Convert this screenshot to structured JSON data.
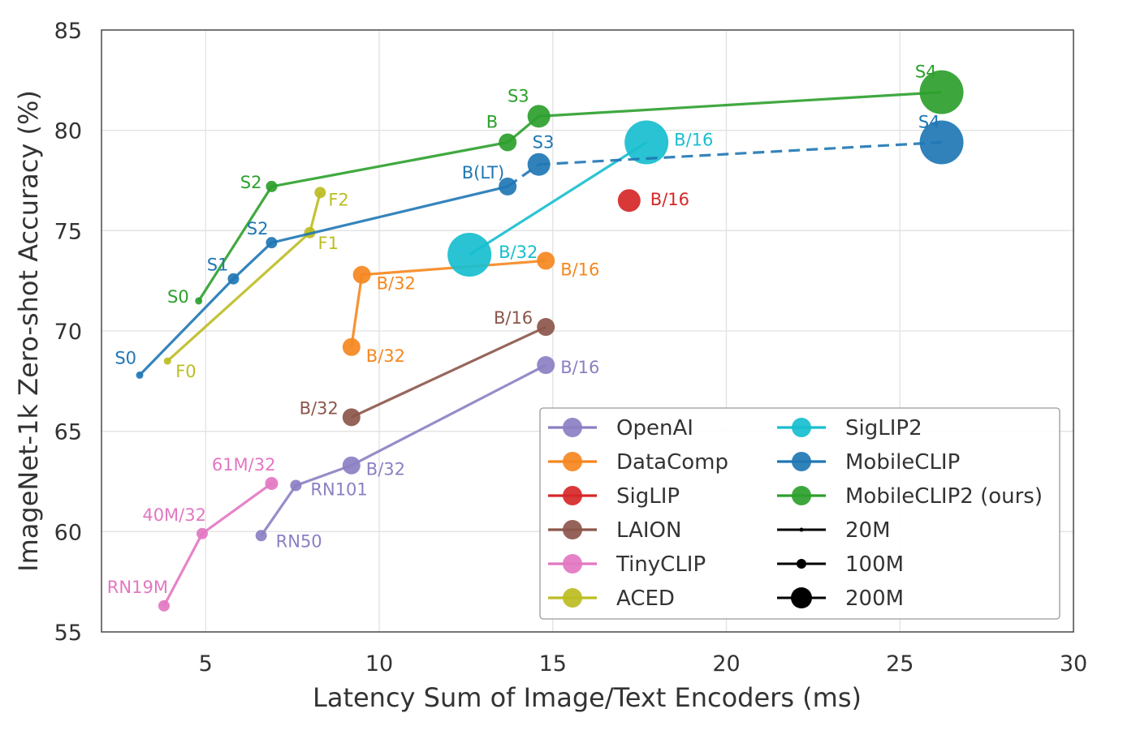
{
  "chart_data": {
    "type": "scatter",
    "xlabel": "Latency Sum of Image/Text Encoders (ms)",
    "ylabel": "ImageNet-1k Zero-shot Accuracy (%)",
    "xlim": [
      2,
      30
    ],
    "ylim": [
      55,
      85
    ],
    "x_ticks": [
      5,
      10,
      15,
      20,
      25,
      30
    ],
    "y_ticks": [
      55,
      60,
      65,
      70,
      75,
      80,
      85
    ],
    "grid": true,
    "legend_position": "lower-right",
    "point_size_legend": [
      {
        "label": "20M",
        "size": "small"
      },
      {
        "label": "100M",
        "size": "medium"
      },
      {
        "label": "200M",
        "size": "large"
      }
    ],
    "series": [
      {
        "name": "OpenAI",
        "color": "#8c7fc3",
        "connected": true,
        "dashed": false,
        "points": [
          {
            "label": "RN50",
            "x": 6.6,
            "y": 59.8,
            "size": "small"
          },
          {
            "label": "RN101",
            "x": 7.6,
            "y": 62.3,
            "size": "small"
          },
          {
            "label": "B/32",
            "x": 9.2,
            "y": 63.3,
            "size": "medium"
          },
          {
            "label": "B/16",
            "x": 14.8,
            "y": 68.3,
            "size": "medium"
          }
        ]
      },
      {
        "name": "DataComp",
        "color": "#f5871f",
        "connected": true,
        "dashed": false,
        "points": [
          {
            "label": "B/32",
            "x": 9.2,
            "y": 69.2,
            "size": "medium"
          },
          {
            "label": "B/32",
            "x": 9.5,
            "y": 72.8,
            "size": "medium"
          },
          {
            "label": "B/16",
            "x": 14.8,
            "y": 73.5,
            "size": "medium"
          }
        ]
      },
      {
        "name": "SigLIP",
        "color": "#d62728",
        "connected": false,
        "dashed": false,
        "points": [
          {
            "label": "B/16",
            "x": 17.2,
            "y": 76.5,
            "size": "medium_large"
          }
        ]
      },
      {
        "name": "LAION",
        "color": "#8c564b",
        "connected": true,
        "dashed": false,
        "points": [
          {
            "label": "B/32",
            "x": 9.2,
            "y": 65.7,
            "size": "medium"
          },
          {
            "label": "B/16",
            "x": 14.8,
            "y": 70.2,
            "size": "medium"
          }
        ]
      },
      {
        "name": "TinyCLIP",
        "color": "#e377c2",
        "connected": true,
        "dashed": false,
        "points": [
          {
            "label": "RN19M",
            "x": 3.8,
            "y": 56.3,
            "size": "small"
          },
          {
            "label": "40M/32",
            "x": 4.9,
            "y": 59.9,
            "size": "small"
          },
          {
            "label": "61M/32",
            "x": 6.9,
            "y": 62.4,
            "size": "medium_small"
          }
        ]
      },
      {
        "name": "ACED",
        "color": "#bcbd22",
        "connected": true,
        "dashed": false,
        "points": [
          {
            "label": "F0",
            "x": 3.9,
            "y": 68.5,
            "size": "tiny"
          },
          {
            "label": "F1",
            "x": 8.0,
            "y": 74.9,
            "size": "small"
          },
          {
            "label": "F2",
            "x": 8.3,
            "y": 76.9,
            "size": "small"
          }
        ]
      },
      {
        "name": "SigLIP2",
        "color": "#17becf",
        "connected": true,
        "dashed": false,
        "points": [
          {
            "label": "B/32",
            "x": 12.6,
            "y": 73.8,
            "size": "xlarge"
          },
          {
            "label": "B/16",
            "x": 17.7,
            "y": 79.4,
            "size": "xlarge"
          }
        ]
      },
      {
        "name": "MobileCLIP",
        "color": "#1f77b4",
        "connected": true,
        "dashed": false,
        "points": [
          {
            "label": "S0",
            "x": 3.1,
            "y": 67.8,
            "size": "tiny"
          },
          {
            "label": "S1",
            "x": 5.8,
            "y": 72.6,
            "size": "small"
          },
          {
            "label": "S2",
            "x": 6.9,
            "y": 74.4,
            "size": "small"
          },
          {
            "label": "B(LT)",
            "x": 13.7,
            "y": 77.2,
            "size": "medium"
          },
          {
            "label": "S3",
            "x": 14.6,
            "y": 78.3,
            "size": "medium_large"
          },
          {
            "label": "S4",
            "x": 26.2,
            "y": 79.4,
            "size": "xlarge"
          }
        ]
      },
      {
        "name": "MobileCLIP2 (ours)",
        "color": "#2ca02c",
        "connected": true,
        "dashed": false,
        "points": [
          {
            "label": "S0",
            "x": 4.8,
            "y": 71.5,
            "size": "tiny"
          },
          {
            "label": "S2",
            "x": 6.9,
            "y": 77.2,
            "size": "small"
          },
          {
            "label": "B",
            "x": 13.7,
            "y": 79.4,
            "size": "medium"
          },
          {
            "label": "S3",
            "x": 14.6,
            "y": 80.7,
            "size": "medium_large"
          },
          {
            "label": "S4",
            "x": 26.2,
            "y": 81.9,
            "size": "xlarge"
          }
        ]
      }
    ]
  }
}
